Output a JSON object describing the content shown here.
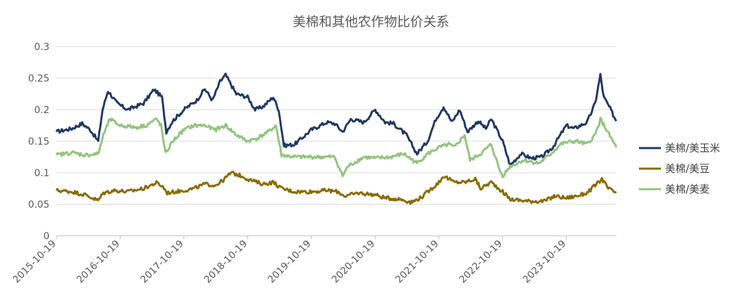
{
  "chart_data": {
    "type": "line",
    "title": "美棉和其他农作物比价关系",
    "xlabel": "",
    "ylabel": "",
    "ylim": [
      0,
      0.3
    ],
    "yticks": [
      0,
      0.05,
      0.1,
      0.15,
      0.2,
      0.25,
      0.3
    ],
    "ytick_labels": [
      "0",
      "0.05",
      "0.1",
      "0.15",
      "0.2",
      "0.25",
      "0.3"
    ],
    "x_start": "2015-10-19",
    "x_end": "2024-07-31",
    "xtick_labels": [
      "2015-10-19",
      "2016-10-19",
      "2017-10-19",
      "2018-10-19",
      "2019-10-19",
      "2020-10-19",
      "2021-10-19",
      "2022-10-19",
      "2023-10-19"
    ],
    "grid": "horizontal",
    "legend_position": "right",
    "series": [
      {
        "name": "美棉/美玉米",
        "color": "#203864",
        "points": [
          [
            "2015-10-19",
            0.165
          ],
          [
            "2016-01-15",
            0.17
          ],
          [
            "2016-03-15",
            0.178
          ],
          [
            "2016-05-01",
            0.168
          ],
          [
            "2016-06-15",
            0.15
          ],
          [
            "2016-07-10",
            0.2
          ],
          [
            "2016-08-10",
            0.23
          ],
          [
            "2016-10-01",
            0.21
          ],
          [
            "2016-12-01",
            0.2
          ],
          [
            "2017-03-01",
            0.21
          ],
          [
            "2017-05-01",
            0.232
          ],
          [
            "2017-06-15",
            0.22
          ],
          [
            "2017-07-10",
            0.165
          ],
          [
            "2017-08-15",
            0.182
          ],
          [
            "2017-10-19",
            0.2
          ],
          [
            "2018-01-01",
            0.215
          ],
          [
            "2018-02-15",
            0.233
          ],
          [
            "2018-04-01",
            0.215
          ],
          [
            "2018-05-15",
            0.245
          ],
          [
            "2018-06-15",
            0.255
          ],
          [
            "2018-08-15",
            0.225
          ],
          [
            "2018-10-19",
            0.22
          ],
          [
            "2018-12-01",
            0.2
          ],
          [
            "2019-01-15",
            0.205
          ],
          [
            "2019-03-15",
            0.22
          ],
          [
            "2019-04-15",
            0.2
          ],
          [
            "2019-05-15",
            0.143
          ],
          [
            "2019-07-15",
            0.145
          ],
          [
            "2019-10-19",
            0.168
          ],
          [
            "2020-01-15",
            0.18
          ],
          [
            "2020-03-01",
            0.178
          ],
          [
            "2020-04-15",
            0.165
          ],
          [
            "2020-06-01",
            0.185
          ],
          [
            "2020-08-15",
            0.18
          ],
          [
            "2020-10-19",
            0.2
          ],
          [
            "2020-12-15",
            0.18
          ],
          [
            "2021-02-01",
            0.178
          ],
          [
            "2021-04-15",
            0.16
          ],
          [
            "2021-06-15",
            0.13
          ],
          [
            "2021-08-15",
            0.15
          ],
          [
            "2021-10-01",
            0.185
          ],
          [
            "2021-11-15",
            0.205
          ],
          [
            "2022-01-01",
            0.18
          ],
          [
            "2022-02-15",
            0.2
          ],
          [
            "2022-04-01",
            0.165
          ],
          [
            "2022-06-01",
            0.182
          ],
          [
            "2022-07-15",
            0.17
          ],
          [
            "2022-08-15",
            0.185
          ],
          [
            "2022-10-19",
            0.15
          ],
          [
            "2022-12-01",
            0.112
          ],
          [
            "2023-02-01",
            0.13
          ],
          [
            "2023-04-01",
            0.123
          ],
          [
            "2023-06-01",
            0.125
          ],
          [
            "2023-08-01",
            0.14
          ],
          [
            "2023-09-15",
            0.16
          ],
          [
            "2023-10-19",
            0.175
          ],
          [
            "2023-12-01",
            0.17
          ],
          [
            "2024-02-15",
            0.18
          ],
          [
            "2024-04-01",
            0.21
          ],
          [
            "2024-05-01",
            0.255
          ],
          [
            "2024-05-20",
            0.22
          ],
          [
            "2024-06-20",
            0.205
          ],
          [
            "2024-07-31",
            0.182
          ]
        ]
      },
      {
        "name": "美棉/美豆",
        "color": "#8B6B00",
        "points": [
          [
            "2015-10-19",
            0.072
          ],
          [
            "2016-01-15",
            0.07
          ],
          [
            "2016-04-01",
            0.065
          ],
          [
            "2016-06-15",
            0.056
          ],
          [
            "2016-07-15",
            0.068
          ],
          [
            "2016-09-15",
            0.072
          ],
          [
            "2016-12-01",
            0.07
          ],
          [
            "2017-03-01",
            0.075
          ],
          [
            "2017-05-15",
            0.084
          ],
          [
            "2017-06-20",
            0.078
          ],
          [
            "2017-07-15",
            0.068
          ],
          [
            "2017-10-19",
            0.072
          ],
          [
            "2017-12-15",
            0.075
          ],
          [
            "2018-02-15",
            0.082
          ],
          [
            "2018-04-15",
            0.08
          ],
          [
            "2018-06-01",
            0.088
          ],
          [
            "2018-07-15",
            0.1
          ],
          [
            "2018-09-15",
            0.095
          ],
          [
            "2018-10-19",
            0.09
          ],
          [
            "2019-01-15",
            0.082
          ],
          [
            "2019-03-15",
            0.085
          ],
          [
            "2019-05-01",
            0.075
          ],
          [
            "2019-07-15",
            0.07
          ],
          [
            "2019-10-19",
            0.07
          ],
          [
            "2020-01-15",
            0.072
          ],
          [
            "2020-03-15",
            0.07
          ],
          [
            "2020-05-01",
            0.063
          ],
          [
            "2020-07-15",
            0.068
          ],
          [
            "2020-10-19",
            0.065
          ],
          [
            "2020-12-15",
            0.06
          ],
          [
            "2021-03-15",
            0.058
          ],
          [
            "2021-05-15",
            0.053
          ],
          [
            "2021-07-15",
            0.062
          ],
          [
            "2021-10-19",
            0.085
          ],
          [
            "2021-11-15",
            0.095
          ],
          [
            "2022-01-15",
            0.085
          ],
          [
            "2022-03-15",
            0.085
          ],
          [
            "2022-05-15",
            0.09
          ],
          [
            "2022-06-15",
            0.075
          ],
          [
            "2022-08-15",
            0.085
          ],
          [
            "2022-10-19",
            0.07
          ],
          [
            "2022-12-01",
            0.058
          ],
          [
            "2023-03-15",
            0.055
          ],
          [
            "2023-06-15",
            0.055
          ],
          [
            "2023-08-15",
            0.063
          ],
          [
            "2023-10-19",
            0.06
          ],
          [
            "2023-12-15",
            0.063
          ],
          [
            "2024-02-15",
            0.068
          ],
          [
            "2024-04-01",
            0.08
          ],
          [
            "2024-05-10",
            0.09
          ],
          [
            "2024-06-15",
            0.075
          ],
          [
            "2024-07-31",
            0.068
          ]
        ]
      },
      {
        "name": "美棉/美麦",
        "color": "#92C47C",
        "points": [
          [
            "2015-10-19",
            0.128
          ],
          [
            "2016-01-15",
            0.132
          ],
          [
            "2016-04-01",
            0.128
          ],
          [
            "2016-06-15",
            0.13
          ],
          [
            "2016-07-15",
            0.16
          ],
          [
            "2016-08-20",
            0.185
          ],
          [
            "2016-10-19",
            0.175
          ],
          [
            "2017-01-15",
            0.172
          ],
          [
            "2017-03-15",
            0.175
          ],
          [
            "2017-05-15",
            0.185
          ],
          [
            "2017-06-10",
            0.175
          ],
          [
            "2017-07-05",
            0.13
          ],
          [
            "2017-08-15",
            0.15
          ],
          [
            "2017-10-19",
            0.168
          ],
          [
            "2017-12-15",
            0.175
          ],
          [
            "2018-02-15",
            0.175
          ],
          [
            "2018-04-15",
            0.168
          ],
          [
            "2018-06-15",
            0.175
          ],
          [
            "2018-08-15",
            0.16
          ],
          [
            "2018-10-19",
            0.15
          ],
          [
            "2018-12-15",
            0.155
          ],
          [
            "2019-02-15",
            0.165
          ],
          [
            "2019-03-30",
            0.175
          ],
          [
            "2019-05-01",
            0.128
          ],
          [
            "2019-07-15",
            0.125
          ],
          [
            "2019-10-19",
            0.125
          ],
          [
            "2020-01-15",
            0.125
          ],
          [
            "2020-03-01",
            0.125
          ],
          [
            "2020-04-15",
            0.095
          ],
          [
            "2020-05-15",
            0.11
          ],
          [
            "2020-08-15",
            0.125
          ],
          [
            "2020-10-19",
            0.123
          ],
          [
            "2021-01-15",
            0.125
          ],
          [
            "2021-04-01",
            0.13
          ],
          [
            "2021-06-15",
            0.115
          ],
          [
            "2021-08-15",
            0.13
          ],
          [
            "2021-10-19",
            0.14
          ],
          [
            "2021-12-15",
            0.145
          ],
          [
            "2022-01-15",
            0.14
          ],
          [
            "2022-03-15",
            0.16
          ],
          [
            "2022-04-15",
            0.12
          ],
          [
            "2022-06-15",
            0.13
          ],
          [
            "2022-08-15",
            0.145
          ],
          [
            "2022-10-01",
            0.105
          ],
          [
            "2022-10-19",
            0.095
          ],
          [
            "2022-12-01",
            0.11
          ],
          [
            "2023-02-15",
            0.12
          ],
          [
            "2023-05-15",
            0.115
          ],
          [
            "2023-07-15",
            0.128
          ],
          [
            "2023-09-15",
            0.145
          ],
          [
            "2023-10-19",
            0.148
          ],
          [
            "2023-12-15",
            0.15
          ],
          [
            "2024-02-15",
            0.145
          ],
          [
            "2024-04-01",
            0.16
          ],
          [
            "2024-05-01",
            0.185
          ],
          [
            "2024-06-01",
            0.17
          ],
          [
            "2024-07-31",
            0.14
          ]
        ]
      }
    ]
  }
}
